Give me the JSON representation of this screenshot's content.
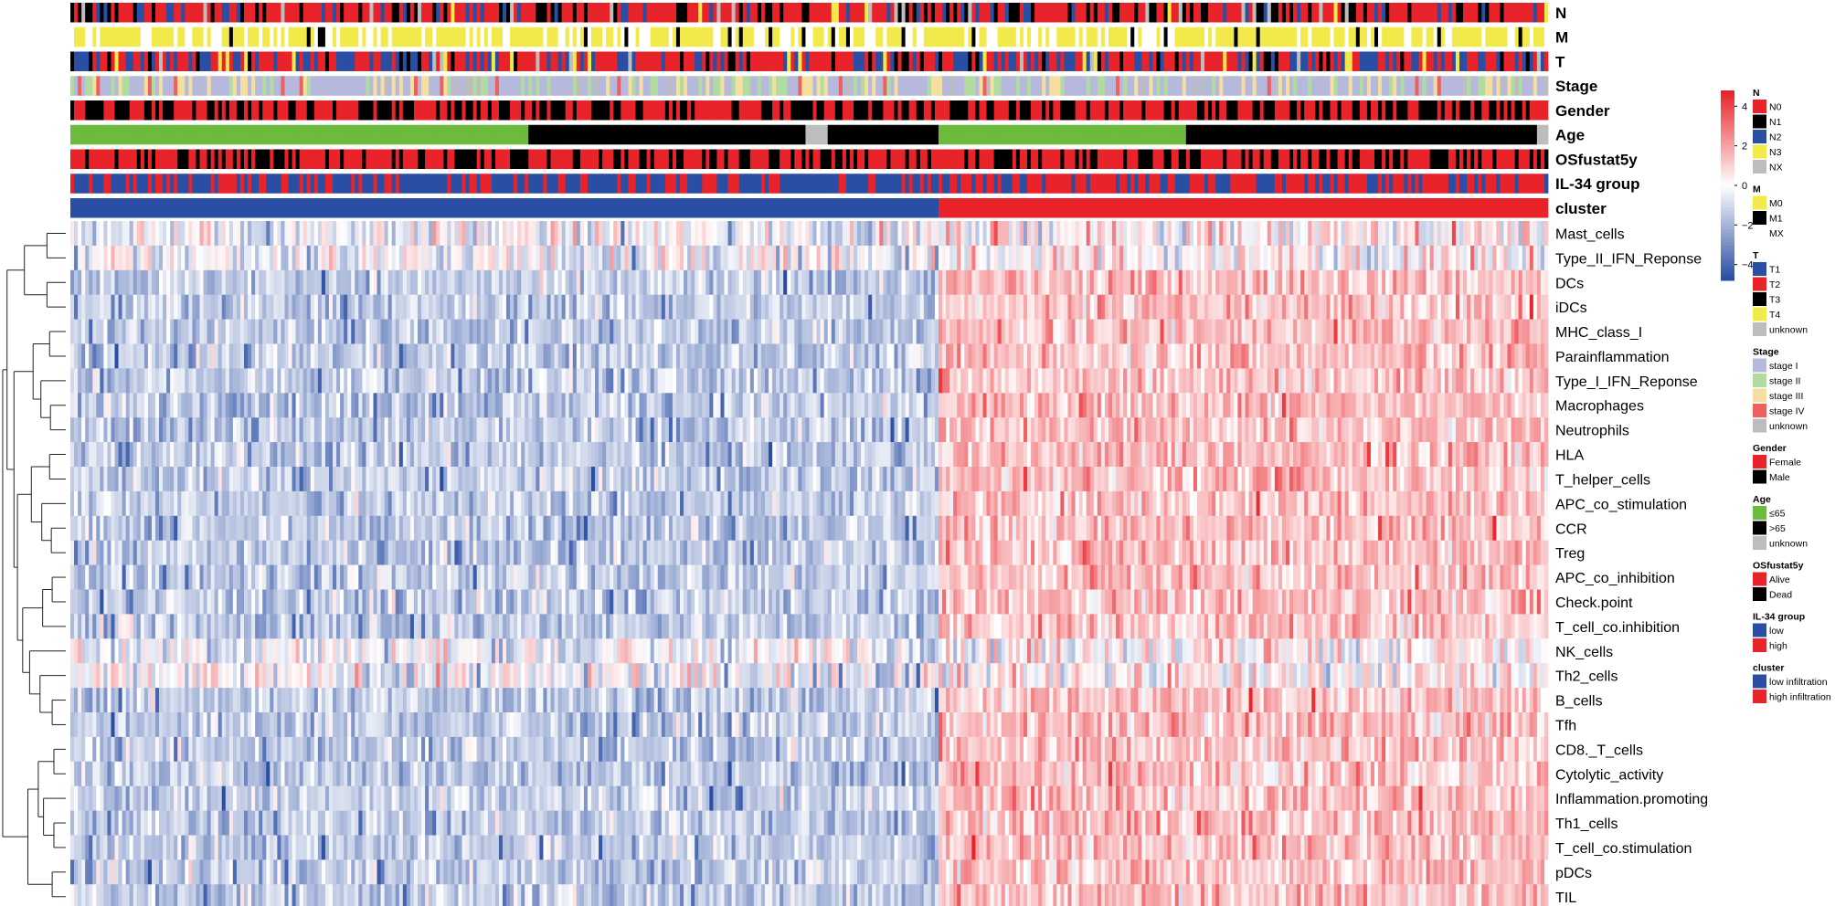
{
  "chart_data": {
    "type": "heatmap",
    "annotation_tracks": [
      "N",
      "M",
      "T",
      "Stage",
      "Gender",
      "Age",
      "OSfustat5y",
      "IL-34 group",
      "cluster"
    ],
    "rows": [
      "Mast_cells",
      "Type_II_IFN_Reponse",
      "DCs",
      "iDCs",
      "MHC_class_I",
      "Parainflammation",
      "Type_I_IFN_Reponse",
      "Macrophages",
      "Neutrophils",
      "HLA",
      "T_helper_cells",
      "APC_co_stimulation",
      "CCR",
      "Treg",
      "APC_co_inhibition",
      "Check.point",
      "T_cell_co.inhibition",
      "NK_cells",
      "Th2_cells",
      "B_cells",
      "Tfh",
      "CD8._T_cells",
      "Cytolytic_activity",
      "Inflammation.promoting",
      "Th1_cells",
      "T_cell_co.stimulation",
      "pDCs",
      "TIL"
    ],
    "colorbar": {
      "ticks": [
        "4",
        "2",
        "0",
        "−2",
        "−4"
      ],
      "vmin": -4.8,
      "vmax": 4.8,
      "low_color": "#2a4ea3",
      "mid_color": "#ffffff",
      "high_color": "#e8232a"
    },
    "cluster_split_fraction": 0.587,
    "n_samples": 400,
    "legends": [
      {
        "title": "N",
        "items": [
          {
            "label": "N0",
            "color": "#e8232a"
          },
          {
            "label": "N1",
            "color": "#000000"
          },
          {
            "label": "N2",
            "color": "#2a4ea3"
          },
          {
            "label": "N3",
            "color": "#f2e94a"
          },
          {
            "label": "NX",
            "color": "#bdbdbd"
          }
        ]
      },
      {
        "title": "M",
        "items": [
          {
            "label": "M0",
            "color": "#f2e94a"
          },
          {
            "label": "M1",
            "color": "#000000"
          },
          {
            "label": "MX",
            "color": "#ffffff"
          }
        ]
      },
      {
        "title": "T",
        "items": [
          {
            "label": "T1",
            "color": "#2a4ea3"
          },
          {
            "label": "T2",
            "color": "#e8232a"
          },
          {
            "label": "T3",
            "color": "#000000"
          },
          {
            "label": "T4",
            "color": "#f2e94a"
          },
          {
            "label": "unknown",
            "color": "#bdbdbd"
          }
        ]
      },
      {
        "title": "Stage",
        "items": [
          {
            "label": "stage I",
            "color": "#b6b8dc"
          },
          {
            "label": "stage II",
            "color": "#b2dba1"
          },
          {
            "label": "stage III",
            "color": "#f4dfa0"
          },
          {
            "label": "stage IV",
            "color": "#ee6060"
          },
          {
            "label": "unknown",
            "color": "#bdbdbd"
          }
        ]
      },
      {
        "title": "Gender",
        "items": [
          {
            "label": "Female",
            "color": "#e8232a"
          },
          {
            "label": "Male",
            "color": "#000000"
          }
        ]
      },
      {
        "title": "Age",
        "items": [
          {
            "label": "≤65",
            "color": "#6cbb3c"
          },
          {
            "label": ">65",
            "color": "#000000"
          },
          {
            "label": "unknown",
            "color": "#bdbdbd"
          }
        ]
      },
      {
        "title": "OSfustat5y",
        "items": [
          {
            "label": "Alive",
            "color": "#e8232a"
          },
          {
            "label": "Dead",
            "color": "#000000"
          }
        ]
      },
      {
        "title": "IL-34 group",
        "items": [
          {
            "label": "low",
            "color": "#2a4ea3"
          },
          {
            "label": "high",
            "color": "#e8232a"
          }
        ]
      },
      {
        "title": "cluster",
        "items": [
          {
            "label": "low infiltration",
            "color": "#2a4ea3"
          },
          {
            "label": "high infiltration",
            "color": "#e8232a"
          }
        ]
      }
    ]
  }
}
